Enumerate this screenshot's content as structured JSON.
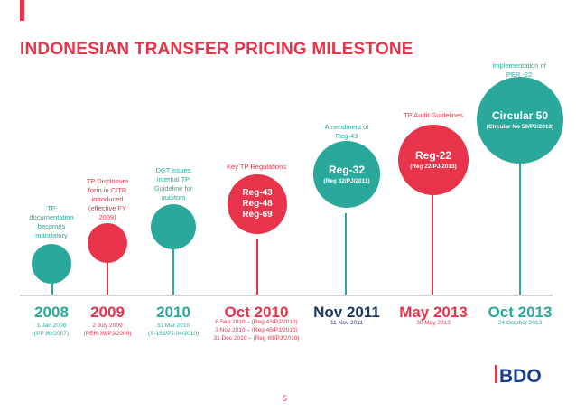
{
  "title": "INDONESIAN TRANSFER PRICING MILESTONE",
  "page_number": "5",
  "logo_text": "BDO",
  "colors": {
    "teal": "#2aa89b",
    "red": "#e8344a",
    "navy": "#1d3a63"
  },
  "milestones": [
    {
      "id": "m2008",
      "year": "2008",
      "date_lines": [
        "1 Jan 2008",
        "(PP 80/2007)"
      ],
      "label_lines": [
        "TP",
        "documentation",
        "becomes",
        "mandatory"
      ],
      "ball_lines": []
    },
    {
      "id": "m2009",
      "year": "2009",
      "date_lines": [
        "2 July 2009",
        "(PER-39/PJ/2009)"
      ],
      "label_lines": [
        "TP Disclosure",
        "form in CITR",
        "introduced",
        "(effective FY",
        "2009)"
      ],
      "ball_lines": []
    },
    {
      "id": "m2010",
      "year": "2010",
      "date_lines": [
        "31 Mar 2010",
        "(S-153/PJ.04/2010)"
      ],
      "label_lines": [
        "DGT issues",
        "internal TP",
        "Guideline for",
        "auditors"
      ],
      "ball_lines": []
    },
    {
      "id": "moct2010",
      "year": "Oct 2010",
      "date_lines": [
        "6 Sep 2010 – (Reg 43/PJ/2010)",
        "3 Nov 2010 – (Reg 48/PJ/2010)",
        "31 Dec 2010 – (Reg 69/PJ/2010)"
      ],
      "label_lines": [
        "Key TP Regulations"
      ],
      "ball_lines": [
        "Reg-43",
        "Reg-48",
        "Reg-69"
      ]
    },
    {
      "id": "mnov2011",
      "year": "Nov 2011",
      "date_lines": [
        "11 Nov 2011"
      ],
      "label_lines": [
        "Amendment of",
        "Reg-43"
      ],
      "ball_main": "Reg-32",
      "ball_sub": "(Reg 32/PJ/2011)"
    },
    {
      "id": "mmay2013",
      "year": "May 2013",
      "date_lines": [
        "30 May 2013"
      ],
      "label_lines": [
        "TP Audit Guidelines"
      ],
      "ball_main": "Reg-22",
      "ball_sub": "(Reg 22/PJ/2013)"
    },
    {
      "id": "moct2013",
      "year": "Oct 2013",
      "date_lines": [
        "24 October 2013"
      ],
      "label_lines": [
        "Implementation of",
        "PER -22"
      ],
      "ball_main": "Circular 50",
      "ball_sub": "(Circular No 50/PJ/2013)"
    }
  ]
}
